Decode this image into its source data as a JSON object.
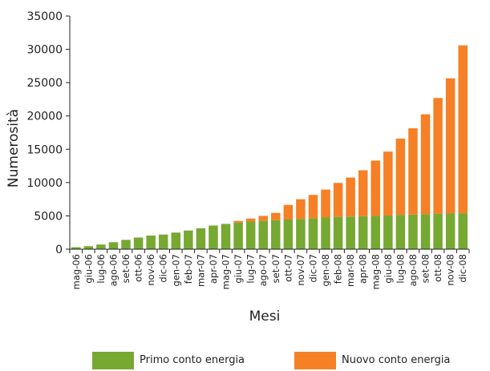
{
  "chart_data": {
    "type": "bar",
    "stacked": true,
    "xlabel": "Mesi",
    "ylabel": "Numerosità",
    "ylim": [
      0,
      35000
    ],
    "yticks": [
      0,
      5000,
      10000,
      15000,
      20000,
      25000,
      30000,
      35000
    ],
    "grid": false,
    "legend_position": "bottom",
    "categories": [
      "mag-06",
      "giu-06",
      "lug-06",
      "ago-06",
      "set-06",
      "ott-06",
      "nov-06",
      "dic-06",
      "gen-07",
      "feb-07",
      "mar-07",
      "apr-07",
      "mag-07",
      "giu-07",
      "lug-07",
      "ago-07",
      "set-07",
      "ott-07",
      "nov-07",
      "dic-07",
      "gen-08",
      "feb-08",
      "mar-08",
      "apr-08",
      "mag-08",
      "giu-08",
      "lug-08",
      "ago-08",
      "set-08",
      "ott-08",
      "nov-08",
      "dic-08"
    ],
    "series": [
      {
        "name": "Primo conto energia",
        "color": "#76a832",
        "values": [
          300,
          450,
          700,
          1050,
          1400,
          1750,
          2050,
          2200,
          2500,
          2800,
          3150,
          3550,
          3800,
          4000,
          4150,
          4250,
          4350,
          4450,
          4550,
          4650,
          4750,
          4850,
          4900,
          4950,
          5000,
          5050,
          5150,
          5200,
          5250,
          5300,
          5350,
          5400
        ]
      },
      {
        "name": "Nuovo conto energia",
        "color": "#f58025",
        "values": [
          0,
          0,
          0,
          0,
          0,
          0,
          0,
          0,
          0,
          0,
          0,
          0,
          0,
          250,
          450,
          750,
          1100,
          2200,
          2950,
          3500,
          4200,
          5100,
          5850,
          6900,
          8300,
          9600,
          11450,
          12950,
          15000,
          17400,
          20300,
          25200
        ]
      }
    ]
  }
}
